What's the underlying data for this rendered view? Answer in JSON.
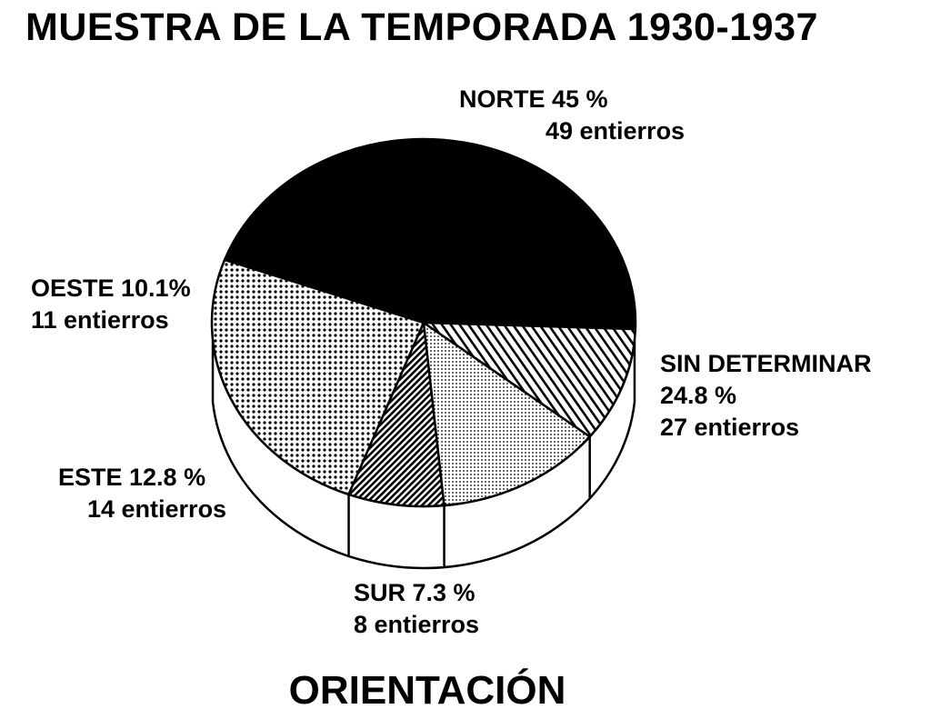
{
  "chart_data": {
    "type": "pie",
    "title": "MUESTRA DE LA TEMPORADA 1930-1937",
    "subtitle": "ORIENTACIÓN",
    "slices": [
      {
        "name": "NORTE",
        "percent": 45,
        "count": 49,
        "pct_label": "45 %",
        "count_label": "49 entierros",
        "label": "NORTE 45 %",
        "pattern": "solid"
      },
      {
        "name": "SIN DETERMINAR",
        "percent": 24.8,
        "count": 27,
        "pct_label": "24.8 %",
        "count_label": "27 entierros",
        "label": "SIN DETERMINAR",
        "pattern": "dots-coarse"
      },
      {
        "name": "SUR",
        "percent": 7.3,
        "count": 8,
        "pct_label": "7.3 %",
        "count_label": "8 entierros",
        "label": "SUR 7.3 %",
        "pattern": "dense-hatch"
      },
      {
        "name": "ESTE",
        "percent": 12.8,
        "count": 14,
        "pct_label": "12.8 %",
        "count_label": "14 entierros",
        "label": "ESTE 12.8 %",
        "pattern": "dots-fine"
      },
      {
        "name": "OESTE",
        "percent": 10.1,
        "count": 11,
        "pct_label": "10.1%",
        "count_label": "11 entierros",
        "label": "OESTE 10.1%",
        "pattern": "diagonal-hatch"
      }
    ],
    "legend": "none",
    "colors": {
      "ink": "#000000",
      "paper": "#ffffff"
    }
  }
}
